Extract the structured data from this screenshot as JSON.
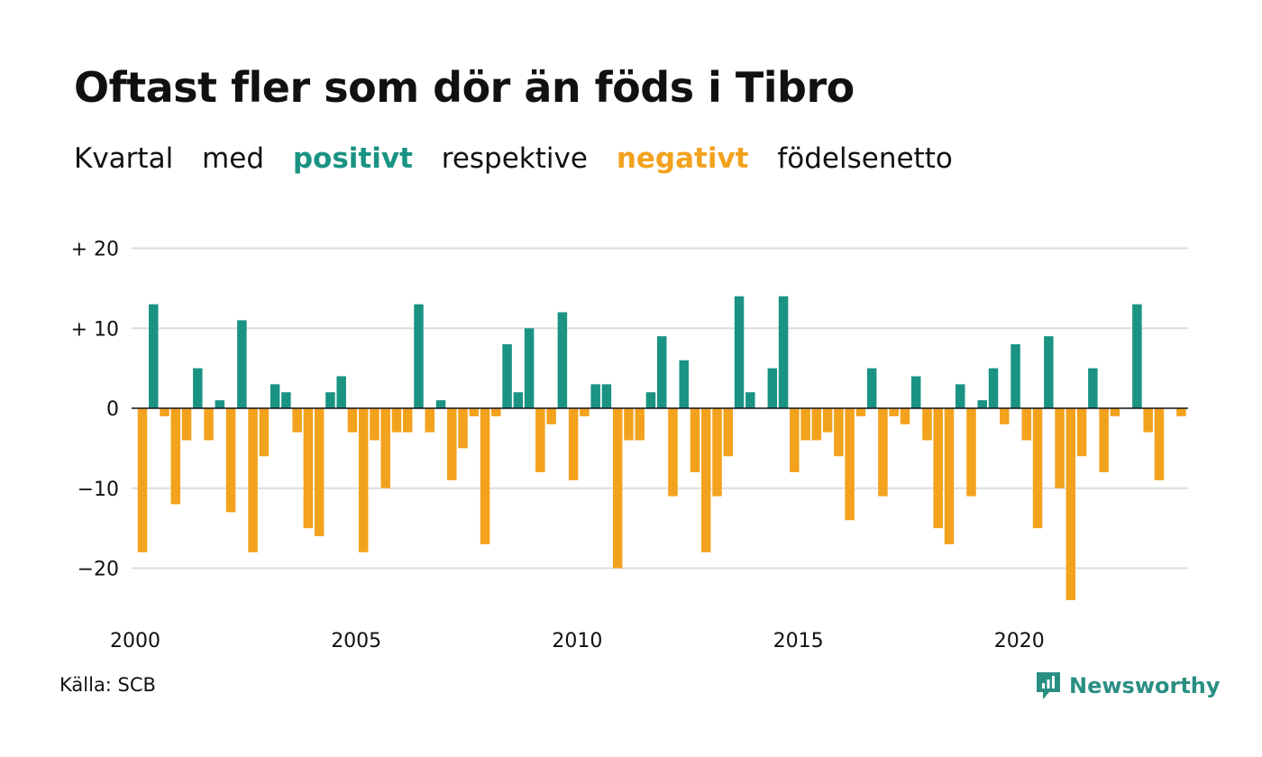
{
  "title": "Oftast fler som dör än föds i Tibro",
  "subtitle": {
    "part1": "Kvartal",
    "part2": "med",
    "positive": "positivt",
    "part3": "respektive",
    "negative": "negativt",
    "part4": "födelsenetto"
  },
  "source": "Källa: SCB",
  "brand": "Newsworthy",
  "colors": {
    "positive": "#1a9383",
    "negative": "#f3a21d",
    "grid": "#dddddd",
    "zero": "#111111"
  },
  "chart_data": {
    "type": "bar",
    "x_start": 2000,
    "x_unit": "quarter",
    "x_ticks": [
      2000,
      2005,
      2010,
      2015,
      2020
    ],
    "x_tick_labels": [
      "2000",
      "2005",
      "2010",
      "2015",
      "2020"
    ],
    "y_ticks": [
      20,
      10,
      0,
      -10,
      -20
    ],
    "y_tick_labels": [
      "+ 20",
      "+ 10",
      "0",
      "−10",
      "−20"
    ],
    "ylim": [
      -26,
      21
    ],
    "grid": true,
    "values": [
      -18,
      13,
      -1,
      -12,
      -4,
      5,
      -4,
      1,
      -13,
      11,
      -18,
      -6,
      3,
      2,
      -3,
      -15,
      -16,
      2,
      4,
      -3,
      -18,
      -4,
      -10,
      -3,
      -3,
      13,
      -3,
      1,
      -9,
      -5,
      -1,
      -17,
      -1,
      8,
      2,
      10,
      -8,
      -2,
      12,
      -9,
      -1,
      3,
      3,
      -20,
      -4,
      -4,
      2,
      9,
      -11,
      6,
      -8,
      -18,
      -11,
      -6,
      14,
      2,
      0,
      5,
      14,
      -8,
      -4,
      -4,
      -3,
      -6,
      -14,
      -1,
      5,
      -11,
      -1,
      -2,
      4,
      -4,
      -15,
      -17,
      3,
      -11,
      1,
      5,
      -2,
      8,
      -4,
      -15,
      9,
      -10,
      -24,
      -6,
      5,
      -8,
      -1,
      0,
      13,
      -3,
      -9,
      0,
      -1
    ]
  }
}
